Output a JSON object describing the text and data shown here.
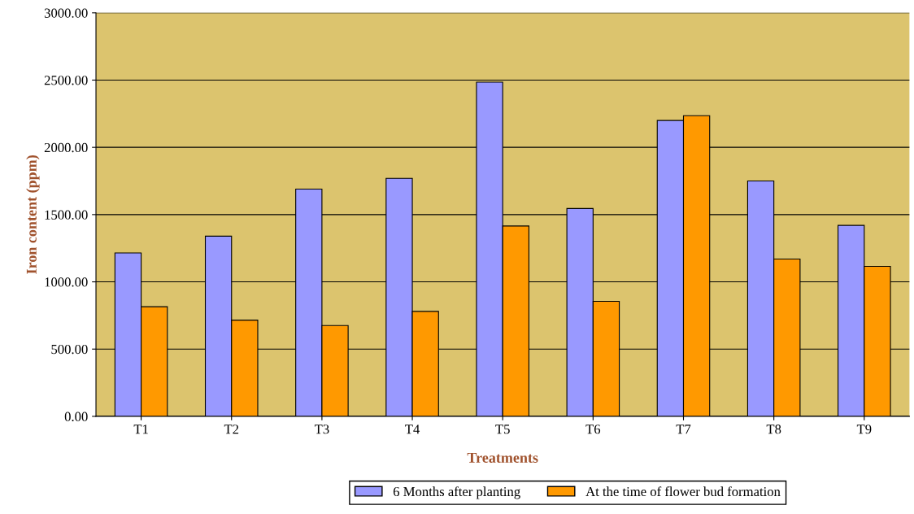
{
  "chart_data": {
    "type": "bar",
    "xlabel": "Treatments",
    "ylabel": "Iron content (ppm)",
    "categories": [
      "T1",
      "T2",
      "T3",
      "T4",
      "T5",
      "T6",
      "T7",
      "T8",
      "T9"
    ],
    "series": [
      {
        "name": "6 Months after planting",
        "color": "#9999ff",
        "values": [
          1215,
          1340,
          1690,
          1770,
          2485,
          1545,
          2200,
          1750,
          1420
        ]
      },
      {
        "name": "At the time of flower bud formation",
        "color": "#ff9900",
        "values": [
          815,
          715,
          675,
          780,
          1415,
          855,
          2235,
          1170,
          1115
        ]
      }
    ],
    "ylim": [
      0,
      3000
    ],
    "yticks": [
      {
        "value": 0,
        "label": "0.00"
      },
      {
        "value": 500,
        "label": "500.00"
      },
      {
        "value": 1000,
        "label": "1000.00"
      },
      {
        "value": 1500,
        "label": "1500.00"
      },
      {
        "value": 2000,
        "label": "2000.00"
      },
      {
        "value": 2500,
        "label": "2500.00"
      },
      {
        "value": 3000,
        "label": "3000.00"
      }
    ],
    "grid": "y",
    "legend": "bottom"
  }
}
